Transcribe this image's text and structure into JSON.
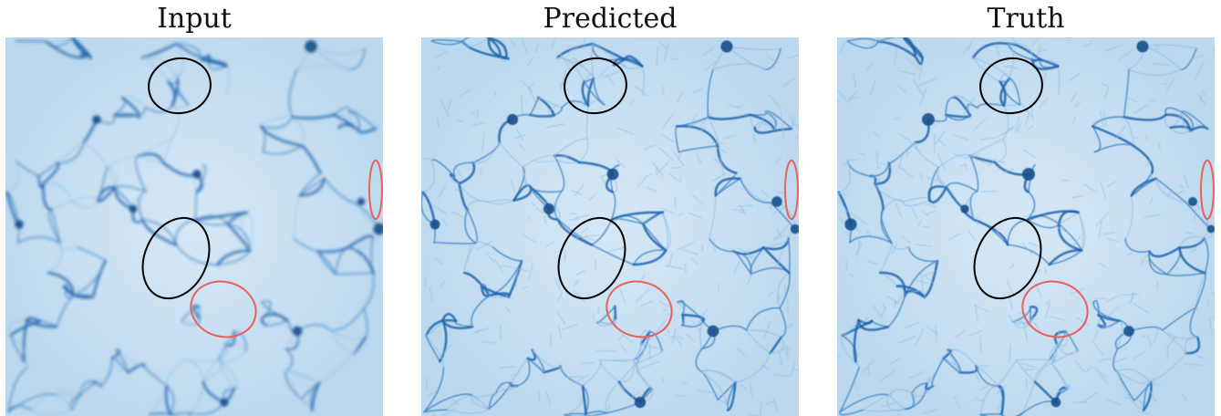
{
  "panels": [
    {
      "title": "Input"
    },
    {
      "title": "Predicted"
    },
    {
      "title": "Truth"
    }
  ],
  "colors": {
    "background": "#c9e0f2",
    "filament_dark": "#1f64ad",
    "filament_mid": "#3f86c4",
    "filament_light": "#8dbbe0",
    "node": "#174f8c",
    "annotation_black": "#000000",
    "annotation_red": "#e8615c"
  }
}
